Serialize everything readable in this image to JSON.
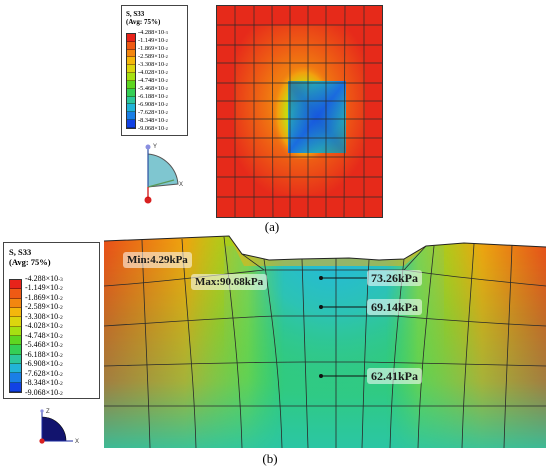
{
  "legend": {
    "title_line1": "S, S33",
    "title_line2": "(Avg: 75%)",
    "ticks": [
      {
        "mantissa": "-4.288",
        "exp": "-3"
      },
      {
        "mantissa": "-1.149",
        "exp": "-2"
      },
      {
        "mantissa": "-1.869",
        "exp": "-2"
      },
      {
        "mantissa": "-2.589",
        "exp": "-2"
      },
      {
        "mantissa": "-3.308",
        "exp": "-2"
      },
      {
        "mantissa": "-4.028",
        "exp": "-2"
      },
      {
        "mantissa": "-4.748",
        "exp": "-2"
      },
      {
        "mantissa": "-5.468",
        "exp": "-2"
      },
      {
        "mantissa": "-6.188",
        "exp": "-2"
      },
      {
        "mantissa": "-6.908",
        "exp": "-2"
      },
      {
        "mantissa": "-7.628",
        "exp": "-2"
      },
      {
        "mantissa": "-8.348",
        "exp": "-2"
      },
      {
        "mantissa": "-9.068",
        "exp": "-2"
      }
    ],
    "colors": [
      "#e8231a",
      "#ef5a14",
      "#f3860f",
      "#f4b70c",
      "#dcd50e",
      "#a7e012",
      "#5ed621",
      "#34cf55",
      "#2cc79c",
      "#22b4d8",
      "#1a7fe6",
      "#1242e4"
    ],
    "tick_sep": "×10"
  },
  "triad_top": {
    "y_label": "Y",
    "x_label": "X"
  },
  "triad_bottom": {
    "z_label": "Z",
    "x_label": "X"
  },
  "captions": {
    "a": "(a)",
    "b": "(b)"
  },
  "annotations": {
    "min": "Min:4.29kPa",
    "max": "Max:90.68kPa",
    "p1": "73.26kPa",
    "p2": "69.14kPa",
    "p3": "62.41kPa"
  }
}
